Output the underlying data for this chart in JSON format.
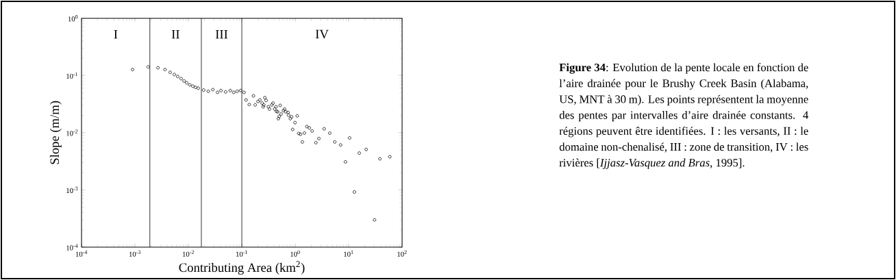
{
  "chart_data": {
    "type": "scatter",
    "xlabel": "Contributing Area (km$^{2}$)",
    "ylabel": "Slope (m/m)",
    "annotations": [
      "I",
      "II",
      "III",
      "IV",
      "**Figure 34**: Evolution de la pente locale en fonction de l’aire drainée pour le Brushy Creek Basin (Alabama, US, MNT à 30 m). Les points représentent la moyenne des pentes par intervalles d’aire drainée constants. 4 régions peuvent être identifiées. I : les versants, II : le domaine non-chenalisé, III : zone de transition, IV : les rivières [*Ijjasz-Vasquez and Bras*, 1995]."
    ],
    "log": "xy",
    "xlim": [
      0.0001,
      100
    ],
    "ylim": [
      0.0001,
      1
    ],
    "xticks": [
      {
        "value": 0.0001,
        "label": "10$^{-4}$"
      },
      {
        "value": 0.001,
        "label": "10$^{-3}$"
      },
      {
        "value": 0.01,
        "label": "10$^{-2}$"
      },
      {
        "value": 0.1,
        "label": "10$^{-1}$"
      },
      {
        "value": 1,
        "label": "10$^{0}$"
      },
      {
        "value": 10,
        "label": "10$^{1}$"
      },
      {
        "value": 100,
        "label": "10$^{2}$"
      }
    ],
    "yticks": [
      {
        "value": 0.0001,
        "label": "10$^{-4}$"
      },
      {
        "value": 0.001,
        "label": "10$^{-3}$"
      },
      {
        "value": 0.01,
        "label": "10$^{-2}$"
      },
      {
        "value": 0.1,
        "label": "10$^{-1}$"
      },
      {
        "value": 1,
        "label": "10$^{0}$"
      }
    ],
    "ref_lines": [
      {
        "axis": "x",
        "value": 0.0019
      },
      {
        "axis": "x",
        "value": 0.0175
      },
      {
        "axis": "x",
        "value": 0.1
      }
    ],
    "grid": false,
    "marker": "circle",
    "series": [
      {
        "color": "#000000",
        "x": [
          0.0009,
          0.00177,
          0.0027,
          0.00365,
          0.00455,
          0.00545,
          0.0063,
          0.0073,
          0.0083,
          0.0093,
          0.0106,
          0.0121,
          0.0136,
          0.0153,
          0.0193,
          0.0236,
          0.0287,
          0.0351,
          0.0407,
          0.0498,
          0.0607,
          0.0705,
          0.0818,
          0.095,
          0.11,
          0.12,
          0.165,
          0.138,
          0.178,
          0.201,
          0.218,
          0.24,
          0.258,
          0.27,
          0.285,
          0.251,
          0.314,
          0.33,
          0.365,
          0.384,
          0.411,
          0.436,
          0.446,
          0.469,
          0.522,
          0.502,
          0.483,
          0.544,
          0.601,
          0.632,
          0.664,
          0.734,
          0.748,
          0.811,
          0.853,
          0.895,
          0.99,
          1.09,
          1.16,
          1.26,
          1.36,
          1.49,
          1.65,
          1.84,
          2.07,
          2.43,
          2.77,
          3.48,
          4.42,
          5.5,
          7.05,
          10.4,
          8.69,
          15.8,
          21.3,
          12.8,
          38.4,
          58.9,
          30.5
        ],
        "values": [
          0.127,
          0.1415,
          0.1365,
          0.127,
          0.1135,
          0.104,
          0.096,
          0.088,
          0.08,
          0.0745,
          0.0686,
          0.065,
          0.062,
          0.06,
          0.0555,
          0.053,
          0.0565,
          0.0507,
          0.0546,
          0.0516,
          0.0546,
          0.0507,
          0.053,
          0.0546,
          0.0507,
          0.0374,
          0.0441,
          0.0311,
          0.0306,
          0.0351,
          0.0374,
          0.0329,
          0.0306,
          0.041,
          0.0367,
          0.0284,
          0.0284,
          0.0259,
          0.0306,
          0.0329,
          0.0259,
          0.0284,
          0.0236,
          0.0232,
          0.03,
          0.0193,
          0.0176,
          0.0212,
          0.0243,
          0.0259,
          0.0232,
          0.0226,
          0.0202,
          0.0176,
          0.019,
          0.0114,
          0.015,
          0.0197,
          0.0097,
          0.0094,
          0.0069,
          0.0099,
          0.0128,
          0.0121,
          0.0107,
          0.0067,
          0.0079,
          0.0117,
          0.0098,
          0.0069,
          0.0061,
          0.0081,
          0.0031,
          0.0044,
          0.0051,
          0.00092,
          0.0035,
          0.0038,
          0.0003
        ]
      }
    ]
  }
}
